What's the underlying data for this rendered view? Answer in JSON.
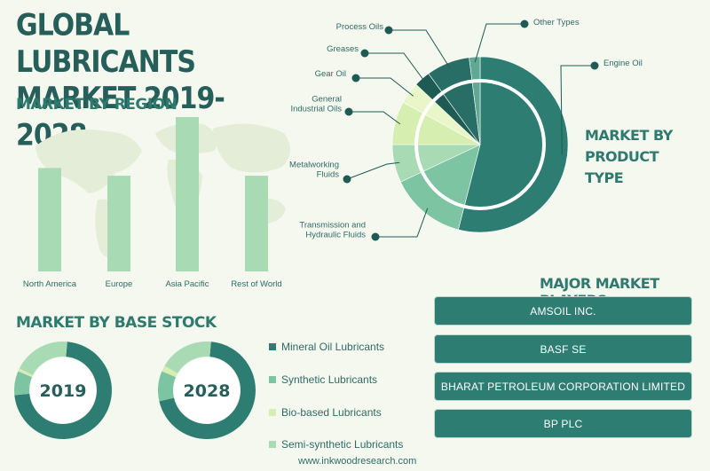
{
  "title": "GLOBAL LUBRICANTS MARKET 2019-2028",
  "sections": {
    "region": "MARKET BY REGION",
    "base_stock": "MARKET BY BASE STOCK",
    "product_type": "MARKET BY PRODUCT TYPE",
    "players": "MAJOR MARKET PLAYERS"
  },
  "colors": {
    "dark_teal": "#2e7d73",
    "darkest_teal": "#1f5b55",
    "medium_green": "#7cc4a2",
    "light_green": "#a8dbb4",
    "pale_green": "#d6efb0",
    "title_color": "#265e5a"
  },
  "chart_data": [
    {
      "type": "bar",
      "name": "region",
      "categories": [
        "North America",
        "Europe",
        "Asia Pacific",
        "Rest of World"
      ],
      "values": [
        67,
        62,
        100,
        62
      ],
      "ylim": [
        0,
        100
      ]
    },
    {
      "type": "pie",
      "name": "product_type",
      "labels": [
        "Engine Oil",
        "Transmission and Hydraulic Fluids",
        "Metalworking Fluids",
        "General Industrial Oils",
        "Gear Oil",
        "Greases",
        "Process Oils",
        "Other Types"
      ],
      "values": [
        54,
        14,
        7,
        8,
        4,
        3,
        8,
        2
      ],
      "colors": [
        "#2e7d73",
        "#7cc4a2",
        "#a8dbb4",
        "#d6efb0",
        "#e8f6c8",
        "#1f5b55",
        "#296e66",
        "#5fa892"
      ]
    },
    {
      "type": "pie",
      "name": "base_stock_2019",
      "center_label": "2019",
      "labels": [
        "Mineral Oil Lubricants",
        "Synthetic Lubricants",
        "Bio-based Lubricants",
        "Semi-synthetic Lubricants"
      ],
      "values": [
        72,
        8,
        1,
        19
      ]
    },
    {
      "type": "pie",
      "name": "base_stock_2028",
      "center_label": "2028",
      "labels": [
        "Mineral Oil Lubricants",
        "Synthetic Lubricants",
        "Bio-based Lubricants",
        "Semi-synthetic Lubricants"
      ],
      "values": [
        70,
        10,
        2,
        18
      ]
    }
  ],
  "base_stock_legend": [
    {
      "label": "Mineral Oil Lubricants",
      "color": "#2e7d73"
    },
    {
      "label": "Synthetic Lubricants",
      "color": "#7cc4a2"
    },
    {
      "label": "Bio-based Lubricants",
      "color": "#d6efb0"
    },
    {
      "label": "Semi-synthetic Lubricants",
      "color": "#a8dbb4"
    }
  ],
  "players": [
    "AMSOIL INC.",
    "BASF SE",
    "BHARAT PETROLEUM CORPORATION LIMITED",
    "BP PLC"
  ],
  "footer": "www.inkwoodresearch.com"
}
